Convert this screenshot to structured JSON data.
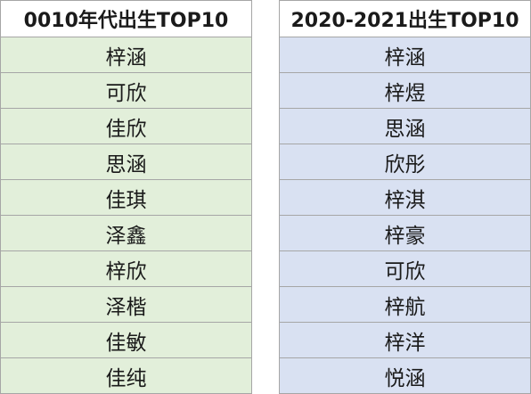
{
  "tables": [
    {
      "header": "0010年代出生TOP10",
      "names": [
        "梓涵",
        "可欣",
        "佳欣",
        "思涵",
        "佳琪",
        "泽鑫",
        "梓欣",
        "泽楷",
        "佳敏",
        "佳纯"
      ],
      "row_color": "#e2efda"
    },
    {
      "header": "2020-2021出生TOP10",
      "names": [
        "梓涵",
        "梓煜",
        "思涵",
        "欣彤",
        "梓淇",
        "梓豪",
        "可欣",
        "梓航",
        "梓洋",
        "悦涵"
      ],
      "row_color": "#d9e1f2"
    }
  ],
  "border_color": "#a6a6a6"
}
